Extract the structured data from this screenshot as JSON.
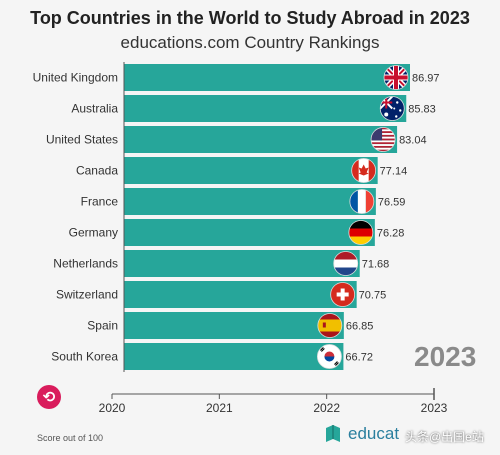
{
  "title": "Top Countries in the World to Study Abroad in 2023",
  "subtitle": "educations.com Country Rankings",
  "year_watermark": "2023",
  "footnote": "Score out of 100",
  "brand_text": "educat",
  "overlay_watermark": "头条@出国e站",
  "colors": {
    "bar": "#26a69a",
    "bar_edge": "#1b7f76",
    "accent": "#d91c5c",
    "brand": "#2a7f9e"
  },
  "chart_data": {
    "type": "bar",
    "orientation": "horizontal",
    "title": "Top Countries in the World to Study Abroad in 2023",
    "subtitle": "educations.com Country Rankings",
    "xlabel": "",
    "ylabel": "",
    "x_axis_ticks": [
      "2020",
      "2021",
      "2022",
      "2023"
    ],
    "xlim": [
      0,
      86.97
    ],
    "categories": [
      "United Kingdom",
      "Australia",
      "United States",
      "Canada",
      "France",
      "Germany",
      "Netherlands",
      "Switzerland",
      "Spain",
      "South Korea"
    ],
    "values": [
      86.97,
      85.83,
      83.04,
      77.14,
      76.59,
      76.28,
      71.68,
      70.75,
      66.85,
      66.72
    ],
    "value_labels": [
      "86.97",
      "85.83",
      "83.04",
      "77.14",
      "76.59",
      "76.28",
      "71.68",
      "70.75",
      "66.85",
      "66.72"
    ],
    "flags": [
      "uk-flag",
      "australia-flag",
      "usa-flag",
      "canada-flag",
      "france-flag",
      "germany-flag",
      "netherlands-flag",
      "switzerland-flag",
      "spain-flag",
      "south-korea-flag"
    ],
    "grid": false,
    "legend": "none"
  }
}
